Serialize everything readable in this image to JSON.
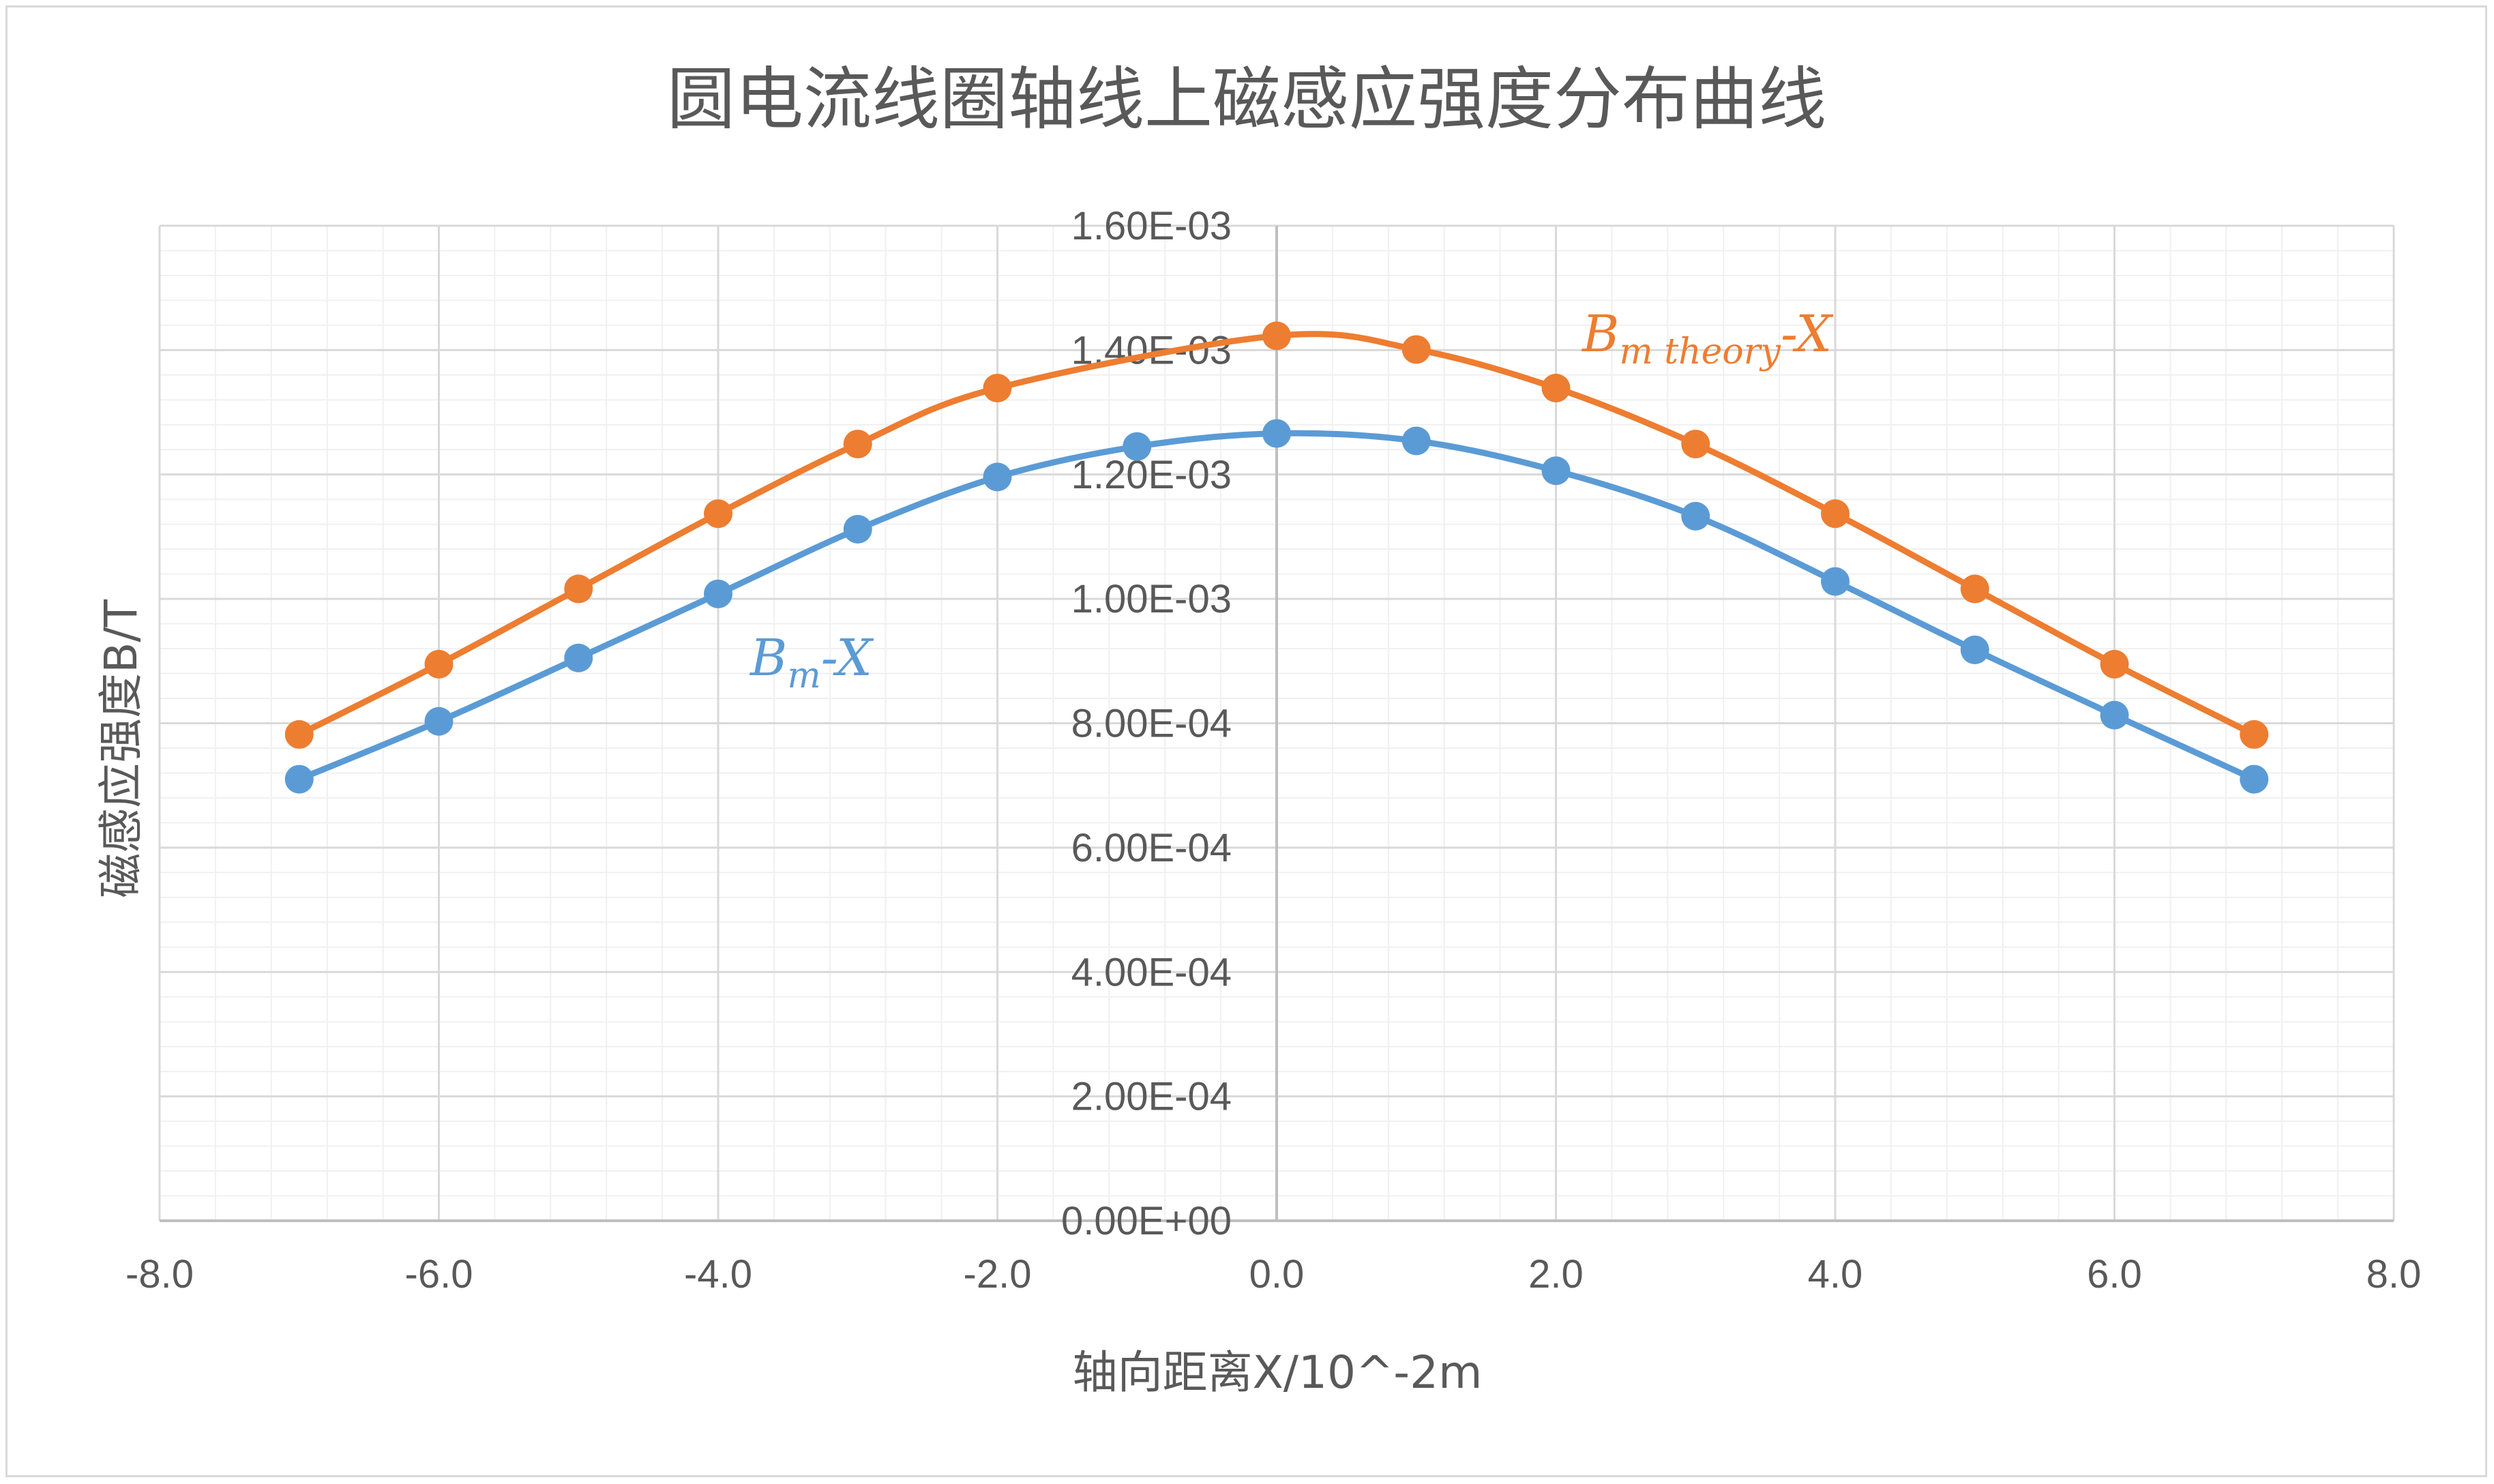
{
  "chart_data": {
    "type": "scatter",
    "title": "圆电流线圈轴线上磁感应强度分布曲线",
    "xlabel": "轴向距离X/10^-2m",
    "ylabel": "磁感应强度B/T",
    "xlim": [
      -8,
      8
    ],
    "ylim": [
      0,
      0.0016
    ],
    "x_ticks": [
      "-8.0",
      "-6.0",
      "-4.0",
      "-2.0",
      "0.0",
      "2.0",
      "4.0",
      "6.0",
      "8.0"
    ],
    "y_ticks": [
      "0.00E+00",
      "2.00E-04",
      "4.00E-04",
      "6.00E-04",
      "8.00E-04",
      "1.00E-03",
      "1.20E-03",
      "1.40E-03",
      "1.60E-03"
    ],
    "grid": true,
    "smooth_lines": true,
    "series": [
      {
        "name": "B_m theory-X",
        "label_main": "B",
        "label_sub": "m theory",
        "label_suffix": "-X",
        "color": "#ED7D31",
        "x": [
          -7,
          -6,
          -5,
          -4,
          -3,
          -2,
          0,
          1,
          2,
          3,
          4,
          5,
          6,
          7
        ],
        "values": [
          0.000782,
          0.000895,
          0.001016,
          0.001137,
          0.001249,
          0.001339,
          0.001423,
          0.001401,
          0.001339,
          0.001249,
          0.001137,
          0.001016,
          0.000895,
          0.000782
        ]
      },
      {
        "name": "B_m-X",
        "label_main": "B",
        "label_sub": "m",
        "label_suffix": "-X",
        "color": "#5B9BD5",
        "x": [
          -7,
          -6,
          -5,
          -4,
          -3,
          -2,
          -1,
          0,
          1,
          2,
          3,
          4,
          5,
          6,
          7
        ],
        "values": [
          0.00071,
          0.000803,
          0.000905,
          0.001008,
          0.001112,
          0.001196,
          0.001245,
          0.001266,
          0.001254,
          0.001206,
          0.001133,
          0.001028,
          0.000918,
          0.000813,
          0.00071
        ]
      }
    ]
  }
}
